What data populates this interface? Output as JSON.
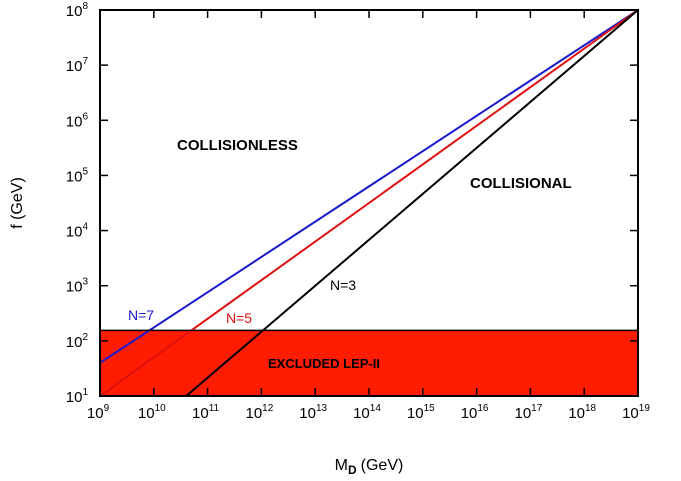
{
  "chart_data": {
    "type": "line",
    "xlabel": "M",
    "xlabel_sub": "D",
    "xlabel_unit": "(GeV)",
    "ylabel": "f (GeV)",
    "x_scale": "log",
    "y_scale": "log",
    "xlim": [
      1000000000.0,
      1e+19
    ],
    "ylim": [
      10,
      100000000.0
    ],
    "x_ticks": [
      {
        "value": 1000000000.0,
        "base": "10",
        "exp": "9"
      },
      {
        "value": 10000000000.0,
        "base": "10",
        "exp": "10"
      },
      {
        "value": 100000000000.0,
        "base": "10",
        "exp": "11"
      },
      {
        "value": 1000000000000.0,
        "base": "10",
        "exp": "12"
      },
      {
        "value": 10000000000000.0,
        "base": "10",
        "exp": "13"
      },
      {
        "value": 100000000000000.0,
        "base": "10",
        "exp": "14"
      },
      {
        "value": 1000000000000000.0,
        "base": "10",
        "exp": "15"
      },
      {
        "value": 1e+16,
        "base": "10",
        "exp": "16"
      },
      {
        "value": 1e+17,
        "base": "10",
        "exp": "17"
      },
      {
        "value": 1e+18,
        "base": "10",
        "exp": "18"
      },
      {
        "value": 1e+19,
        "base": "10",
        "exp": "19"
      }
    ],
    "y_ticks": [
      {
        "value": 10,
        "base": "10",
        "exp": "1"
      },
      {
        "value": 100,
        "base": "10",
        "exp": "2"
      },
      {
        "value": 1000,
        "base": "10",
        "exp": "3"
      },
      {
        "value": 10000,
        "base": "10",
        "exp": "4"
      },
      {
        "value": 100000,
        "base": "10",
        "exp": "5"
      },
      {
        "value": 1000000,
        "base": "10",
        "exp": "6"
      },
      {
        "value": 10000000,
        "base": "10",
        "exp": "7"
      },
      {
        "value": 100000000,
        "base": "10",
        "exp": "8"
      }
    ],
    "series": [
      {
        "name": "N=7",
        "color": "#1a1acc",
        "x": [
          1000000000.0,
          1e+19
        ],
        "y": [
          40,
          100000000.0
        ]
      },
      {
        "name": "N=5",
        "color": "#e01010",
        "x": [
          1000000000.0,
          1e+19
        ],
        "y": [
          10,
          100000000.0
        ]
      },
      {
        "name": "N=3",
        "color": "#000000",
        "x": [
          40000000000.0,
          1e+19
        ],
        "y": [
          10,
          100000000.0
        ]
      }
    ],
    "excluded_region": {
      "label": "EXCLUDED  LEP-II",
      "y_min": 10,
      "y_max": 155,
      "color": "#ff1c00"
    },
    "annotations": [
      {
        "text": "COLLISIONLESS"
      },
      {
        "text": "COLLISIONAL"
      }
    ]
  }
}
